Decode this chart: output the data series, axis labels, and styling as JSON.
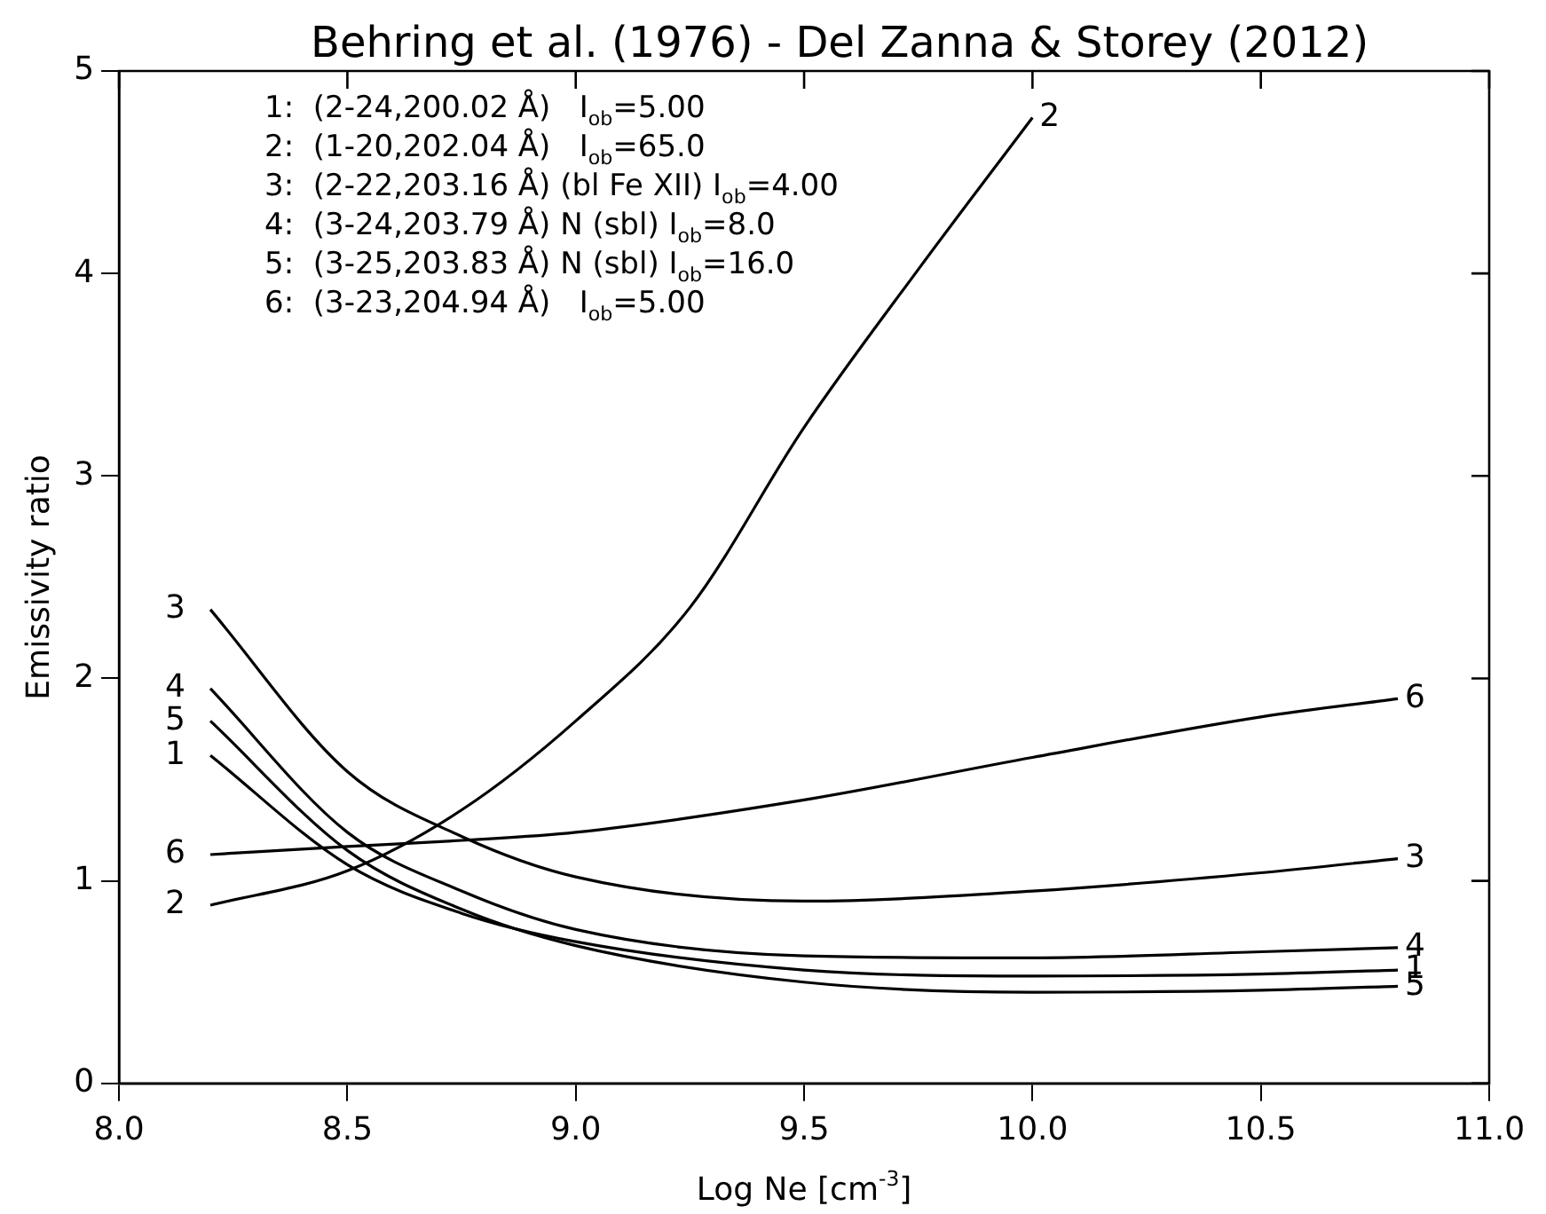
{
  "chart_data": {
    "type": "line",
    "title": "Behring et al. (1976) - Del Zanna & Storey (2012)",
    "xlabel": "Log Ne [cm$^{-3}$]",
    "ylabel": "Emissivity ratio",
    "annotations": [
      "1:  (2-24,200.02 Å)   I$_{ob}$=5.00",
      "2:  (1-20,202.04 Å)   I$_{ob}$=65.0",
      "3:  (2-22,203.16 Å) (bl Fe XII) I$_{ob}$=4.00",
      "4:  (3-24,203.79 Å) N (sbl) I$_{ob}$=8.0",
      "5:  (3-25,203.83 Å) N (sbl) I$_{ob}$=16.0",
      "6:  (3-23,204.94 Å)   I$_{ob}$=5.00"
    ],
    "x": [
      8.2,
      8.5,
      8.75,
      9.0,
      9.5,
      10.0,
      10.5,
      10.8
    ],
    "series": [
      {
        "name": "1",
        "color": "#000000",
        "values": [
          1.62,
          1.08,
          0.84,
          0.7,
          0.56,
          0.53,
          0.54,
          0.56
        ]
      },
      {
        "name": "2",
        "color": "#000000",
        "x": [
          8.2,
          8.5,
          8.75,
          9.0,
          9.25,
          9.5,
          9.75,
          10.0
        ],
        "values": [
          0.88,
          1.05,
          1.35,
          1.79,
          2.35,
          3.24,
          4.02,
          4.77
        ]
      },
      {
        "name": "3",
        "color": "#000000",
        "values": [
          2.34,
          1.54,
          1.22,
          1.02,
          0.9,
          0.95,
          1.04,
          1.11
        ]
      },
      {
        "name": "4",
        "color": "#000000",
        "values": [
          1.95,
          1.24,
          0.95,
          0.76,
          0.63,
          0.62,
          0.65,
          0.67
        ]
      },
      {
        "name": "5",
        "color": "#000000",
        "values": [
          1.79,
          1.15,
          0.86,
          0.68,
          0.5,
          0.45,
          0.46,
          0.48
        ]
      },
      {
        "name": "6",
        "color": "#000000",
        "values": [
          1.13,
          1.17,
          1.2,
          1.24,
          1.4,
          1.61,
          1.81,
          1.9
        ]
      }
    ],
    "xlim": [
      8.0,
      11.0
    ],
    "xticks": [
      {
        "value": 8,
        "label": "8.0"
      },
      8.5,
      {
        "value": 9,
        "label": "9.0"
      },
      9.5,
      {
        "value": 10,
        "label": "10.0"
      },
      10.5,
      {
        "value": 11,
        "label": "11.0"
      }
    ],
    "ylim": [
      0,
      5
    ],
    "yticks": [
      0,
      1,
      2,
      3,
      4,
      5
    ],
    "grid": false,
    "legend": "right",
    "marker": "none",
    "line_style": "solid"
  }
}
